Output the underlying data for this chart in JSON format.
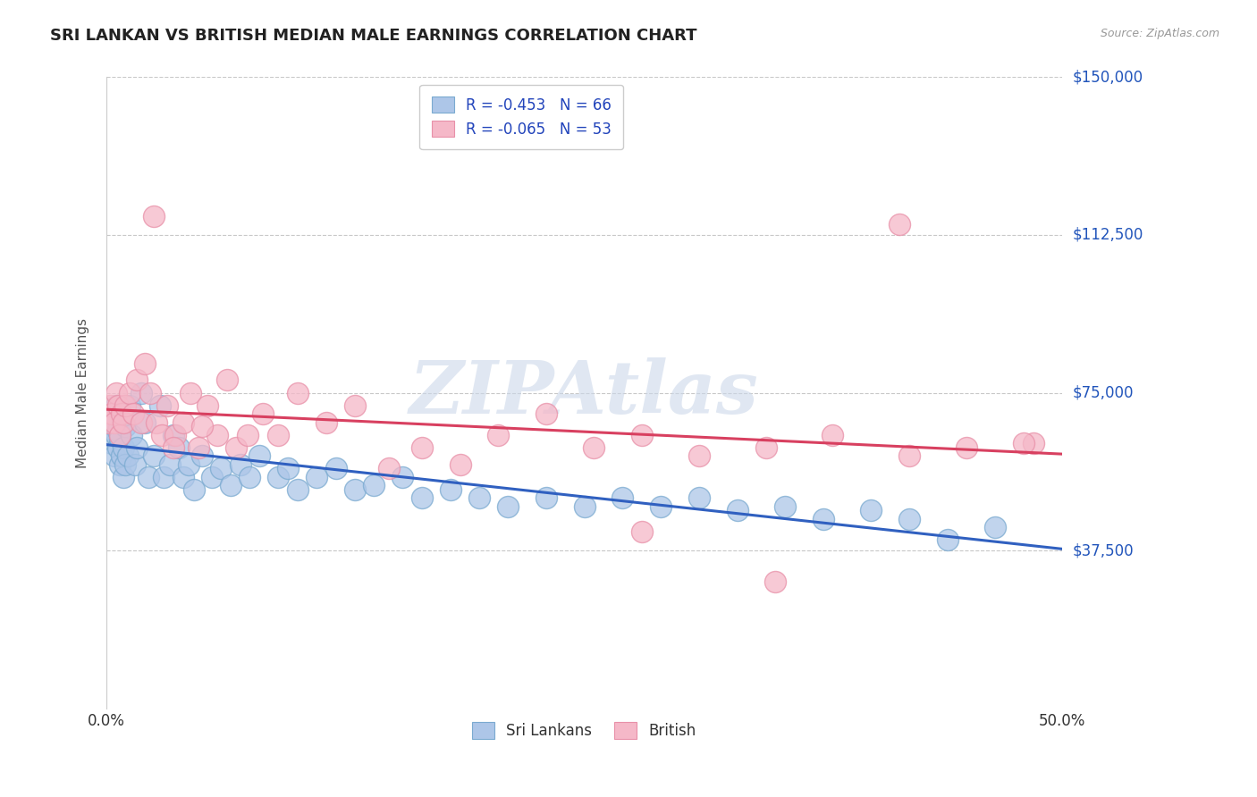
{
  "title": "SRI LANKAN VS BRITISH MEDIAN MALE EARNINGS CORRELATION CHART",
  "source": "Source: ZipAtlas.com",
  "ylabel": "Median Male Earnings",
  "xlim": [
    0.0,
    0.5
  ],
  "ylim": [
    0,
    150000
  ],
  "ytick_values": [
    37500,
    75000,
    112500,
    150000
  ],
  "ytick_labels": [
    "$37,500",
    "$75,000",
    "$112,500",
    "$150,000"
  ],
  "sri_lankan_color": "#adc6e8",
  "british_color": "#f5b8c8",
  "sri_lankan_edge_color": "#7aaad0",
  "british_edge_color": "#e890a8",
  "sri_lankan_line_color": "#3060c0",
  "british_line_color": "#d84060",
  "legend_r_sri": "R = -0.453",
  "legend_n_sri": "N = 66",
  "legend_r_brit": "R = -0.065",
  "legend_n_brit": "N = 53",
  "label_sri": "Sri Lankans",
  "label_brit": "British",
  "watermark": "ZIPAtlas",
  "watermark_color": "#ccd8ea",
  "sri_lankans_x": [
    0.001,
    0.002,
    0.003,
    0.003,
    0.004,
    0.004,
    0.005,
    0.005,
    0.006,
    0.006,
    0.007,
    0.007,
    0.008,
    0.008,
    0.009,
    0.009,
    0.01,
    0.01,
    0.011,
    0.012,
    0.013,
    0.015,
    0.016,
    0.018,
    0.02,
    0.022,
    0.025,
    0.028,
    0.03,
    0.033,
    0.035,
    0.038,
    0.04,
    0.043,
    0.046,
    0.05,
    0.055,
    0.06,
    0.065,
    0.07,
    0.075,
    0.08,
    0.09,
    0.095,
    0.1,
    0.11,
    0.12,
    0.13,
    0.14,
    0.155,
    0.165,
    0.18,
    0.195,
    0.21,
    0.23,
    0.25,
    0.27,
    0.29,
    0.31,
    0.33,
    0.355,
    0.375,
    0.4,
    0.42,
    0.44,
    0.465
  ],
  "sri_lankans_y": [
    65000,
    67000,
    63000,
    68000,
    70000,
    60000,
    65000,
    72000,
    62000,
    66000,
    58000,
    64000,
    60000,
    68000,
    55000,
    62000,
    67000,
    58000,
    60000,
    72000,
    65000,
    58000,
    62000,
    75000,
    68000,
    55000,
    60000,
    72000,
    55000,
    58000,
    65000,
    62000,
    55000,
    58000,
    52000,
    60000,
    55000,
    57000,
    53000,
    58000,
    55000,
    60000,
    55000,
    57000,
    52000,
    55000,
    57000,
    52000,
    53000,
    55000,
    50000,
    52000,
    50000,
    48000,
    50000,
    48000,
    50000,
    48000,
    50000,
    47000,
    48000,
    45000,
    47000,
    45000,
    40000,
    43000
  ],
  "british_x": [
    0.001,
    0.002,
    0.003,
    0.004,
    0.005,
    0.006,
    0.007,
    0.008,
    0.009,
    0.01,
    0.012,
    0.014,
    0.016,
    0.018,
    0.02,
    0.023,
    0.026,
    0.029,
    0.032,
    0.036,
    0.04,
    0.044,
    0.048,
    0.053,
    0.058,
    0.063,
    0.068,
    0.074,
    0.082,
    0.09,
    0.1,
    0.115,
    0.13,
    0.148,
    0.165,
    0.185,
    0.205,
    0.23,
    0.255,
    0.28,
    0.31,
    0.345,
    0.38,
    0.415,
    0.45,
    0.485,
    0.025,
    0.035,
    0.05,
    0.28,
    0.35,
    0.42,
    0.48
  ],
  "british_y": [
    68000,
    72000,
    70000,
    68000,
    75000,
    72000,
    65000,
    70000,
    68000,
    72000,
    75000,
    70000,
    78000,
    68000,
    82000,
    75000,
    68000,
    65000,
    72000,
    65000,
    68000,
    75000,
    62000,
    72000,
    65000,
    78000,
    62000,
    65000,
    70000,
    65000,
    75000,
    68000,
    72000,
    57000,
    62000,
    58000,
    65000,
    70000,
    62000,
    65000,
    60000,
    62000,
    65000,
    115000,
    62000,
    63000,
    117000,
    62000,
    67000,
    42000,
    30000,
    60000,
    63000
  ],
  "title_color": "#222222",
  "title_fontsize": 13,
  "axis_label_color": "#555555",
  "ytick_color": "#2255bb",
  "grid_color": "#c8c8c8",
  "background_color": "#ffffff",
  "legend_text_color": "#2244bb",
  "legend_value_color": "#2244bb"
}
